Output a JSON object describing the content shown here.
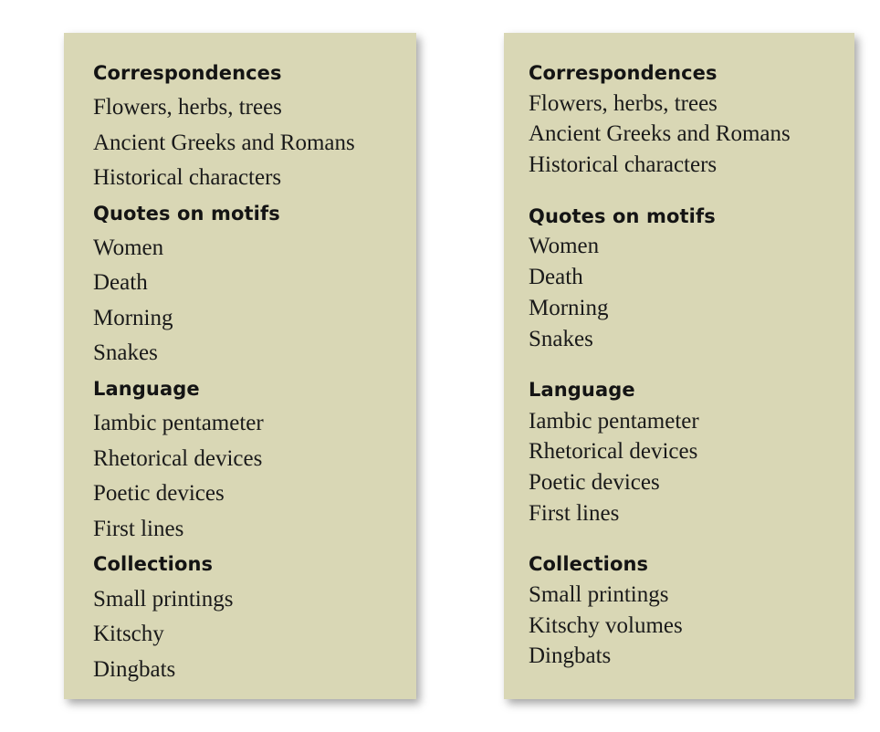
{
  "left_card": {
    "sections": [
      {
        "title": "Correspondences",
        "items": [
          "Flowers, herbs, trees",
          "Ancient Greeks and Romans",
          "Historical characters"
        ]
      },
      {
        "title": "Quotes on motifs",
        "items": [
          "Women",
          "Death",
          "Morning",
          "Snakes"
        ]
      },
      {
        "title": "Language",
        "items": [
          "Iambic pentameter",
          "Rhetorical devices",
          "Poetic devices",
          "First lines"
        ]
      },
      {
        "title": "Collections",
        "items": [
          "Small printings",
          "Kitschy",
          "Dingbats"
        ]
      }
    ]
  },
  "right_card": {
    "sections": [
      {
        "title": "Correspondences",
        "items": [
          "Flowers, herbs, trees",
          "Ancient Greeks and Romans",
          "Historical characters"
        ]
      },
      {
        "title": "Quotes on motifs",
        "items": [
          "Women",
          "Death",
          "Morning",
          "Snakes"
        ]
      },
      {
        "title": "Language",
        "items": [
          "Iambic pentameter",
          "Rhetorical devices",
          "Poetic devices",
          "First lines"
        ]
      },
      {
        "title": "Collections",
        "items": [
          "Small printings",
          "Kitschy volumes",
          "Dingbats"
        ]
      }
    ]
  },
  "colors": {
    "card_background": "#d9d7b5",
    "text": "#1a1a1a"
  }
}
